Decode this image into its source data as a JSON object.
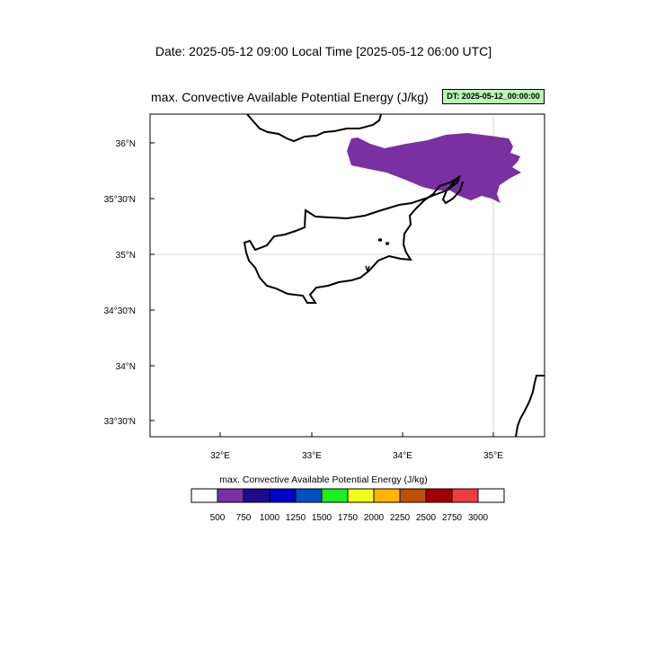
{
  "header": {
    "date_line": "Date: 2025-05-12  09:00 Local Time [2025-05-12  06:00 UTC]"
  },
  "panel": {
    "title": "max. Convective Available Potential Energy   (J/kg)",
    "dt_badge": "DT: 2025-05-12_00:00:00"
  },
  "map": {
    "lon_ticks": [
      "32°E",
      "33°E",
      "34°E",
      "35°E"
    ],
    "lat_ticks": [
      "36°N",
      "35°30'N",
      "35°N",
      "34°30'N",
      "34°N",
      "33°30'N"
    ],
    "cape_fill_color": "#7a30a0"
  },
  "colorbar": {
    "title": "max. Convective Available Potential Energy  (J/kg)",
    "labels": [
      "500",
      "750",
      "1000",
      "1250",
      "1500",
      "1750",
      "2000",
      "2250",
      "2500",
      "2750",
      "3000"
    ],
    "colors": [
      "#ffffff",
      "#7a30a0",
      "#1e0a8c",
      "#0000cc",
      "#0050c0",
      "#1ef01e",
      "#f0ff1e",
      "#ffb400",
      "#c05000",
      "#a00000",
      "#f03c3c",
      "#ffffff"
    ]
  }
}
